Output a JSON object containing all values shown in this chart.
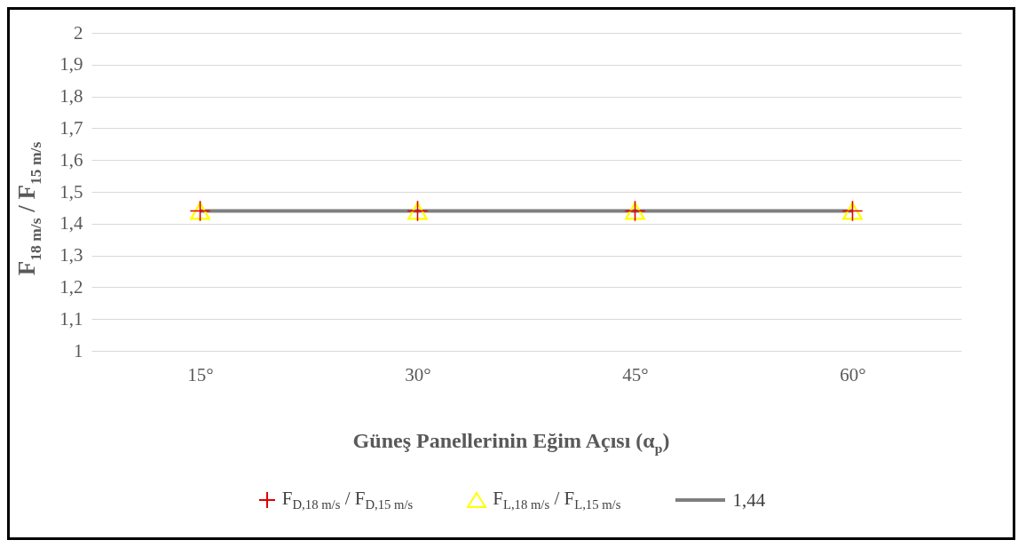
{
  "chart_data": {
    "type": "scatter",
    "xlabel": "Güneş Panellerinin Eğim Açısı (α$_{p}$)",
    "ylabel": "F$_{18 m/s}$  /  F$_{15 m/s}$",
    "categories": [
      "15°",
      "30°",
      "45°",
      "60°"
    ],
    "series": [
      {
        "name": "F$_{D,18 m/s}$ / F$_{D,15 m/s}$",
        "marker": "cross",
        "color": "#e00000",
        "values": [
          1.44,
          1.44,
          1.44,
          1.44
        ]
      },
      {
        "name": "F$_{L,18 m/s}$ / F$_{L,15 m/s}$",
        "marker": "triangle",
        "color": "#ffff00",
        "values": [
          1.44,
          1.44,
          1.44,
          1.44
        ]
      },
      {
        "name": "1,44",
        "type": "line",
        "marker": "none",
        "color": "#7f7f7f",
        "values": [
          1.44,
          1.44,
          1.44,
          1.44
        ]
      }
    ],
    "ylim": [
      1,
      2
    ],
    "yticks": [
      1,
      {
        "value": 1.1,
        "label": "1,1"
      },
      {
        "value": 1.2,
        "label": "1,2"
      },
      {
        "value": 1.3,
        "label": "1,3"
      },
      {
        "value": 1.4,
        "label": "1,4"
      },
      {
        "value": 1.5,
        "label": "1,5"
      },
      {
        "value": 1.6,
        "label": "1,6"
      },
      {
        "value": 1.7,
        "label": "1,7"
      },
      {
        "value": 1.8,
        "label": "1,8"
      },
      {
        "value": 1.9,
        "label": "1,9"
      },
      2
    ],
    "grid": "y",
    "legend": "bottom"
  }
}
